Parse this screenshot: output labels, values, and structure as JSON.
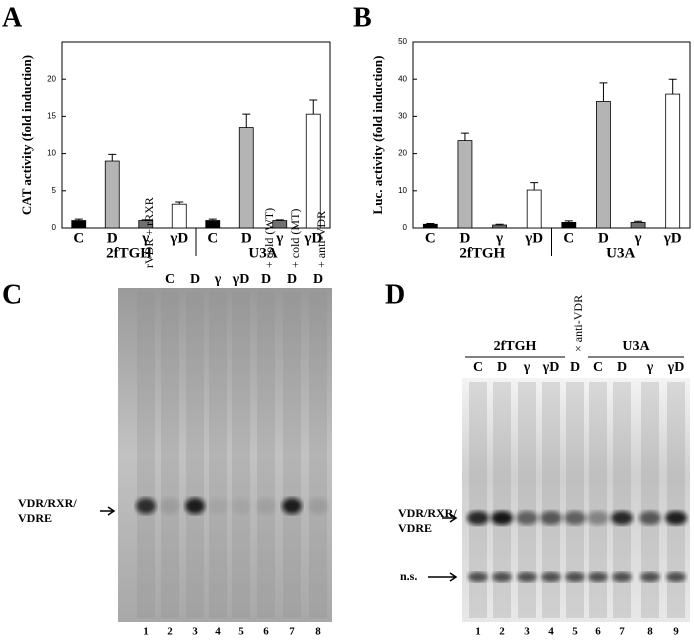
{
  "chart_data": [
    {
      "type": "bar",
      "panel": "A",
      "y_label": "CAT activity (fold induction)",
      "categories": [
        "C",
        "D",
        "γ",
        "γD",
        "C",
        "D",
        "γ",
        "γD"
      ],
      "groups": [
        "2fTGH",
        "U3A"
      ],
      "values": [
        1.0,
        9.0,
        1.0,
        3.2,
        1.0,
        13.5,
        1.0,
        15.3
      ],
      "errors": [
        0.2,
        0.9,
        0.1,
        0.3,
        0.2,
        1.8,
        0.1,
        1.9
      ],
      "colors": [
        "#000000",
        "#b4b4b4",
        "#707070",
        "#ffffff",
        "#000000",
        "#b4b4b4",
        "#707070",
        "#ffffff"
      ],
      "ylim": [
        0,
        25
      ],
      "yticks": [
        0,
        5,
        10,
        15,
        20
      ]
    },
    {
      "type": "bar",
      "panel": "B",
      "y_label": "Luc. activity (fold induction)",
      "categories": [
        "C",
        "D",
        "γ",
        "γD",
        "C",
        "D",
        "γ",
        "γD"
      ],
      "groups": [
        "2fTGH",
        "U3A"
      ],
      "values": [
        1.0,
        23.5,
        0.8,
        10.2,
        1.5,
        34.0,
        1.5,
        36.0
      ],
      "errors": [
        0.2,
        2.0,
        0.2,
        2.0,
        0.4,
        5.0,
        0.3,
        4.0
      ],
      "colors": [
        "#000000",
        "#b4b4b4",
        "#707070",
        "#ffffff",
        "#000000",
        "#b4b4b4",
        "#707070",
        "#ffffff"
      ],
      "ylim": [
        0,
        50
      ],
      "yticks": [
        0,
        10,
        20,
        30,
        40,
        50
      ]
    }
  ],
  "gels": [
    {
      "panel": "C",
      "lane_labels": [
        "",
        "C",
        "D",
        "γ",
        "γD",
        "D",
        "D",
        "D"
      ],
      "rotated_labels": [
        "rVDR + rRXR",
        "",
        "",
        "",
        "",
        "+ cold (WT)",
        "+ cold (MT)",
        "+ anti-VDR"
      ],
      "lane_numbers": [
        1,
        2,
        3,
        4,
        5,
        6,
        7,
        8
      ],
      "band_label": [
        "VDR/RXR/",
        "VDRE"
      ]
    },
    {
      "panel": "D",
      "groups": [
        "2fTGH",
        "U3A"
      ],
      "lane_labels": [
        "C",
        "D",
        "γ",
        "γD",
        "D",
        "C",
        "D",
        "γ",
        "γD"
      ],
      "rotated_label": "× anti-VDR",
      "lane_numbers": [
        1,
        2,
        3,
        4,
        5,
        6,
        7,
        8,
        9
      ],
      "band_label": [
        "VDR/RXR/",
        "VDRE"
      ],
      "ns_label": "n.s."
    }
  ]
}
